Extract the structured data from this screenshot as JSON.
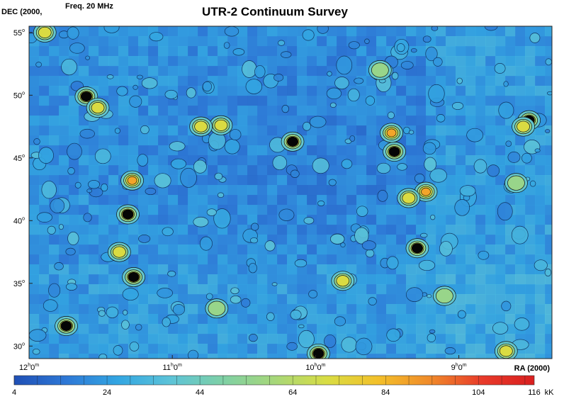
{
  "chart_data": {
    "type": "heatmap",
    "title": "UTR-2 Continuum Survey",
    "frequency_label": "Freq. 20 MHz",
    "ylabel": "DEC (2000,",
    "xlabel": "RA (2000)",
    "x_axis": {
      "direction": "decreasing",
      "range_hours": [
        12.0,
        8.35
      ],
      "ticks": [
        {
          "h": "12",
          "m": "0",
          "value": 12
        },
        {
          "h": "11",
          "m": "0",
          "value": 11
        },
        {
          "h": "10",
          "m": "0",
          "value": 10
        },
        {
          "h": "9",
          "m": "0",
          "value": 9
        }
      ]
    },
    "y_axis": {
      "range_deg": [
        29,
        55.5
      ],
      "ticks": [
        {
          "label": "55",
          "value": 55
        },
        {
          "label": "50",
          "value": 50
        },
        {
          "label": "45",
          "value": 45
        },
        {
          "label": "40",
          "value": 40
        },
        {
          "label": "35",
          "value": 35
        },
        {
          "label": "30",
          "value": 30
        }
      ]
    },
    "colorbar": {
      "unit": "kK",
      "min": 4,
      "max": 116,
      "ticks": [
        {
          "label": "4",
          "value": 4
        },
        {
          "label": "24",
          "value": 24
        },
        {
          "label": "44",
          "value": 44
        },
        {
          "label": "64",
          "value": 64
        },
        {
          "label": "84",
          "value": 84
        },
        {
          "label": "104",
          "value": 104
        },
        {
          "label": "116",
          "value": 116
        }
      ],
      "colors": [
        "#1f4fb5",
        "#2e78d6",
        "#33a6e2",
        "#5cc3d8",
        "#7ed0a6",
        "#a6d77a",
        "#d8dd44",
        "#f3c02a",
        "#f08a2a",
        "#e83a2a",
        "#d91f1f"
      ]
    },
    "background_level_kK": 22,
    "sources": [
      {
        "ra": 11.6,
        "dec": 49.9,
        "t": 100
      },
      {
        "ra": 11.28,
        "dec": 43.2,
        "t": 90
      },
      {
        "ra": 11.31,
        "dec": 40.5,
        "t": 112
      },
      {
        "ra": 11.27,
        "dec": 35.5,
        "t": 106
      },
      {
        "ra": 11.74,
        "dec": 31.6,
        "t": 114
      },
      {
        "ra": 10.16,
        "dec": 46.3,
        "t": 112
      },
      {
        "ra": 9.45,
        "dec": 45.5,
        "t": 116
      },
      {
        "ra": 9.47,
        "dec": 47.0,
        "t": 88
      },
      {
        "ra": 9.23,
        "dec": 42.3,
        "t": 90
      },
      {
        "ra": 9.35,
        "dec": 41.8,
        "t": 84
      },
      {
        "ra": 9.29,
        "dec": 37.8,
        "t": 116
      },
      {
        "ra": 8.51,
        "dec": 48.0,
        "t": 116
      },
      {
        "ra": 9.98,
        "dec": 29.4,
        "t": 110
      },
      {
        "ra": 8.67,
        "dec": 29.6,
        "t": 82
      },
      {
        "ra": 11.89,
        "dec": 55.0,
        "t": 80
      },
      {
        "ra": 11.52,
        "dec": 49.0,
        "t": 80
      },
      {
        "ra": 10.66,
        "dec": 47.6,
        "t": 76
      },
      {
        "ra": 10.8,
        "dec": 47.5,
        "t": 72
      },
      {
        "ra": 9.81,
        "dec": 35.2,
        "t": 74
      },
      {
        "ra": 11.37,
        "dec": 37.5,
        "t": 76
      },
      {
        "ra": 9.55,
        "dec": 52.0,
        "t": 70
      },
      {
        "ra": 8.6,
        "dec": 43.0,
        "t": 70
      },
      {
        "ra": 8.55,
        "dec": 47.5,
        "t": 76
      },
      {
        "ra": 10.69,
        "dec": 33.0,
        "t": 70
      },
      {
        "ra": 9.1,
        "dec": 34.0,
        "t": 66
      }
    ]
  }
}
